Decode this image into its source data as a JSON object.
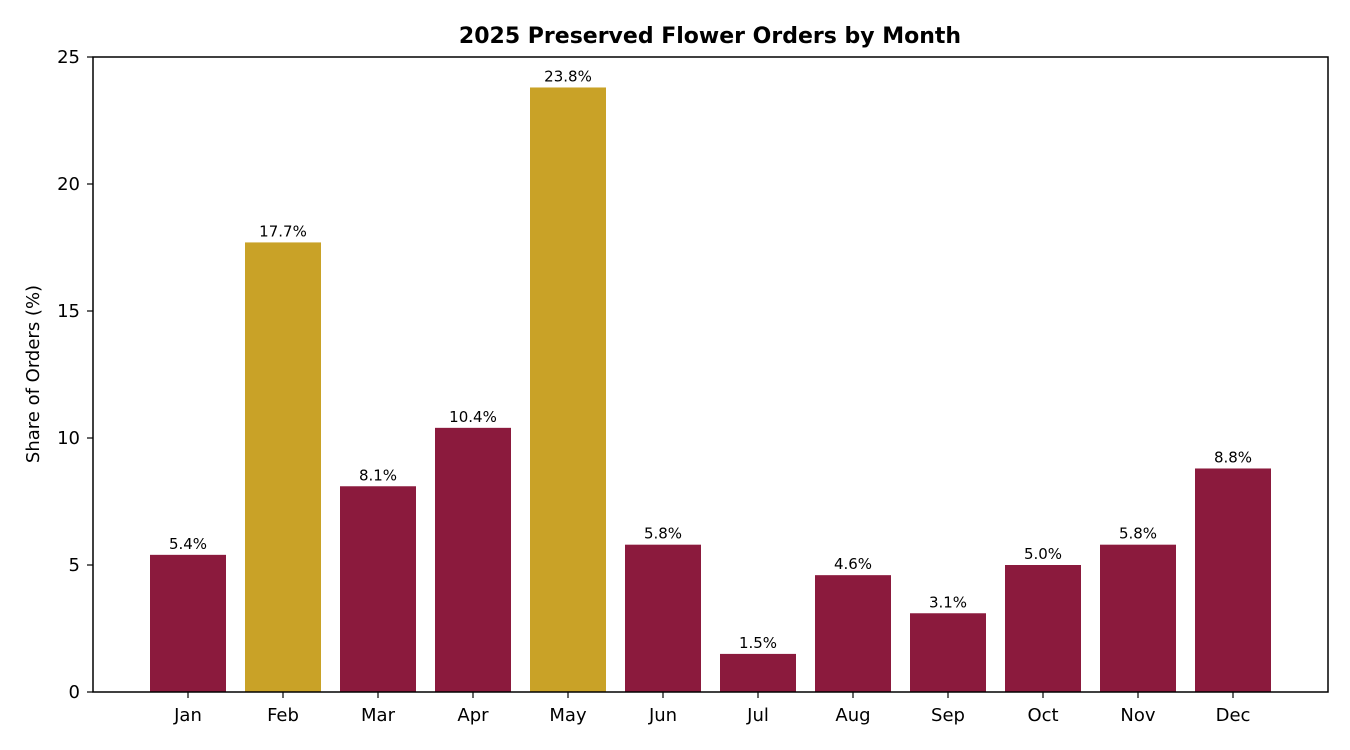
{
  "chart_data": {
    "type": "bar",
    "title": "2025 Preserved Flower Orders by Month",
    "xlabel": "",
    "ylabel": "Share of Orders (%)",
    "categories": [
      "Jan",
      "Feb",
      "Mar",
      "Apr",
      "May",
      "Jun",
      "Jul",
      "Aug",
      "Sep",
      "Oct",
      "Nov",
      "Dec"
    ],
    "values": [
      5.4,
      17.7,
      8.1,
      10.4,
      23.8,
      5.8,
      1.5,
      4.6,
      3.1,
      5.0,
      5.8,
      8.8
    ],
    "data_labels": [
      "5.4%",
      "17.7%",
      "8.1%",
      "10.4%",
      "23.8%",
      "5.8%",
      "1.5%",
      "4.6%",
      "3.1%",
      "5.0%",
      "5.8%",
      "8.8%"
    ],
    "highlighted": [
      "Feb",
      "May"
    ],
    "ylim": [
      0,
      25
    ],
    "yticks": [
      0,
      5,
      10,
      15,
      20,
      25
    ],
    "grid": false,
    "colors": {
      "default_bar": "#8B1A3D",
      "highlight_bar": "#C9A227",
      "axis": "#000000"
    }
  }
}
